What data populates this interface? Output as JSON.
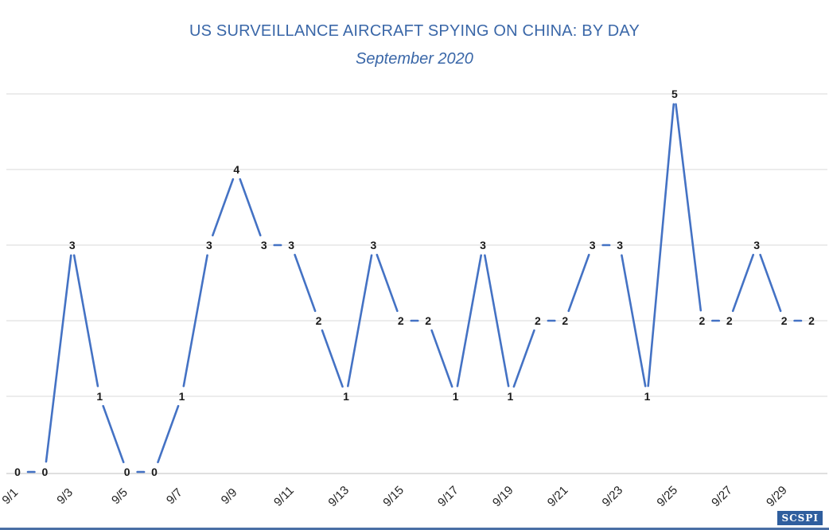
{
  "chart_data": {
    "type": "line",
    "title": "US SURVEILLANCE AIRCRAFT SPYING ON CHINA: BY DAY",
    "subtitle": "September 2020",
    "xlabel": "",
    "ylabel": "",
    "ylim": [
      0,
      5
    ],
    "grid": true,
    "legend": "none",
    "x": [
      "9/1",
      "9/2",
      "9/3",
      "9/4",
      "9/5",
      "9/6",
      "9/7",
      "9/8",
      "9/9",
      "9/10",
      "9/11",
      "9/12",
      "9/13",
      "9/14",
      "9/15",
      "9/16",
      "9/17",
      "9/18",
      "9/19",
      "9/20",
      "9/21",
      "9/22",
      "9/23",
      "9/24",
      "9/25",
      "9/26",
      "9/27",
      "9/28",
      "9/29",
      "9/30"
    ],
    "tick_labels": [
      "9/1",
      "9/3",
      "9/5",
      "9/7",
      "9/9",
      "9/11",
      "9/13",
      "9/15",
      "9/17",
      "9/19",
      "9/21",
      "9/23",
      "9/25",
      "9/27",
      "9/29"
    ],
    "values": [
      0,
      0,
      3,
      1,
      0,
      0,
      1,
      3,
      4,
      3,
      3,
      2,
      1,
      3,
      2,
      2,
      1,
      3,
      1,
      2,
      2,
      3,
      3,
      1,
      5,
      2,
      2,
      3,
      2,
      2
    ],
    "line_color": "#4472c4",
    "grid_color": "#d9d9d9"
  },
  "logo_text": "SCSPI"
}
